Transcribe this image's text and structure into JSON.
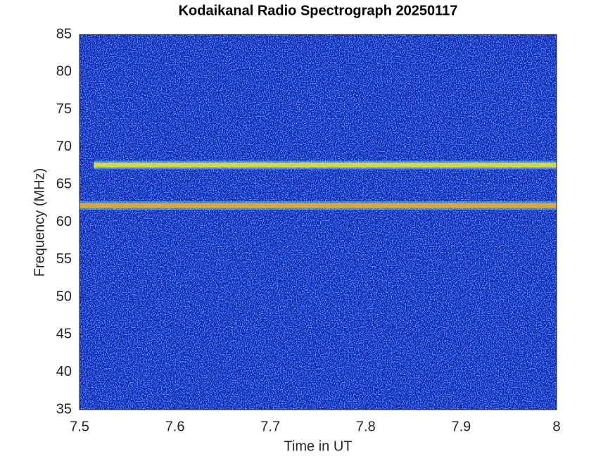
{
  "chart_data": {
    "type": "spectrogram",
    "title": "Kodaikanal Radio Spectrograph  20250117",
    "x_label": "Time in UT",
    "y_label": "Frequency (MHz)",
    "xlim": [
      7.5,
      8
    ],
    "xticks": [
      7.5,
      7.6,
      7.7,
      7.8,
      7.9,
      8
    ],
    "ylim": [
      35,
      85
    ],
    "yticks": [
      35,
      40,
      45,
      50,
      55,
      60,
      65,
      70,
      75,
      80,
      85
    ],
    "background_color": "#0a20b8",
    "bands": [
      {
        "frequency": 67.6,
        "start": 7.515,
        "end": 8,
        "color": "#e6e43a"
      },
      {
        "frequency": 62.2,
        "start": 7.5,
        "end": 8,
        "color": "#f0b020"
      }
    ]
  }
}
